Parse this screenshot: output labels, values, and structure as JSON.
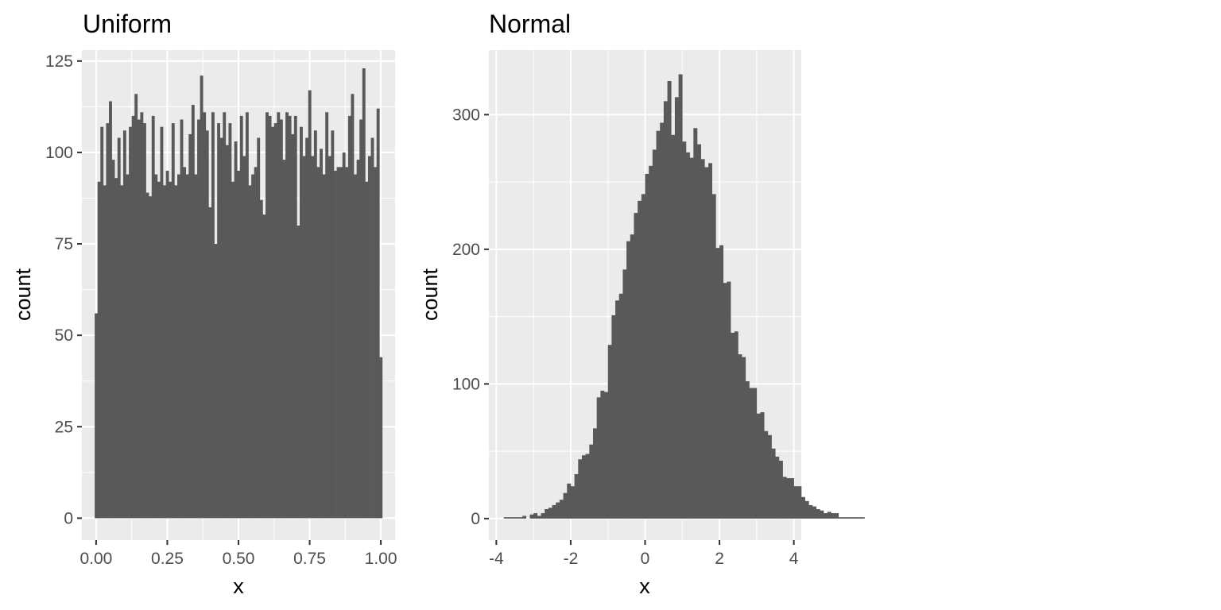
{
  "chart_data": [
    {
      "type": "bar",
      "title": "Uniform",
      "xlabel": "x",
      "ylabel": "count",
      "xlim": [
        -0.05,
        1.05
      ],
      "ylim": [
        -6,
        128
      ],
      "x_ticks": [
        0,
        0.25,
        0.5,
        0.75,
        1
      ],
      "x_tick_labels": [
        "0.00",
        "0.25",
        "0.50",
        "0.75",
        "1.00"
      ],
      "y_ticks": [
        0,
        25,
        50,
        75,
        100,
        125
      ],
      "y_tick_labels": [
        "0",
        "25",
        "50",
        "75",
        "100",
        "125"
      ],
      "grid": true,
      "legend": "none",
      "bin_start": -0.005,
      "bin_width": 0.01,
      "values": [
        56,
        92,
        107,
        91,
        108,
        114,
        98,
        93,
        104,
        91,
        106,
        94,
        107,
        110,
        116,
        109,
        111,
        108,
        89,
        88,
        110,
        94,
        92,
        107,
        91,
        95,
        92,
        108,
        91,
        94,
        109,
        96,
        94,
        105,
        113,
        94,
        109,
        121,
        111,
        106,
        85,
        111,
        75,
        108,
        104,
        111,
        102,
        108,
        92,
        103,
        95,
        110,
        99,
        111,
        91,
        94,
        96,
        104,
        87,
        83,
        111,
        110,
        107,
        108,
        111,
        109,
        98,
        111,
        110,
        105,
        110,
        80,
        107,
        99,
        104,
        117,
        99,
        106,
        96,
        101,
        94,
        111,
        99,
        106,
        95,
        96,
        96,
        100,
        96,
        110,
        116,
        94,
        98,
        109,
        123,
        92,
        99,
        104,
        96,
        112,
        44
      ],
      "bar_color": "#595959",
      "panel_color": "#ebebeb",
      "grid_color": "#ffffff"
    },
    {
      "type": "bar",
      "title": "Normal",
      "xlabel": "x",
      "ylabel": "count",
      "xlim": [
        -4.2,
        4.2
      ],
      "ylim": [
        -16,
        348
      ],
      "x_ticks": [
        -4,
        -2,
        0,
        2,
        4
      ],
      "x_tick_labels": [
        "-4",
        "-2",
        "0",
        "2",
        "4"
      ],
      "y_ticks": [
        0,
        100,
        200,
        300
      ],
      "y_tick_labels": [
        "0",
        "100",
        "200",
        "300"
      ],
      "grid": true,
      "legend": "none",
      "bin_start": -4.0,
      "bin_width": 0.1,
      "values": [
        0,
        0,
        1,
        1,
        1,
        1,
        1,
        2,
        0,
        3,
        4,
        2,
        4,
        7,
        8,
        10,
        12,
        14,
        19,
        26,
        24,
        33,
        44,
        47,
        48,
        55,
        67,
        90,
        95,
        94,
        129,
        151,
        162,
        167,
        185,
        206,
        211,
        227,
        236,
        241,
        256,
        262,
        274,
        288,
        294,
        310,
        325,
        285,
        313,
        330,
        280,
        272,
        268,
        290,
        278,
        267,
        261,
        264,
        241,
        201,
        203,
        175,
        176,
        138,
        139,
        122,
        120,
        102,
        97,
        97,
        78,
        79,
        65,
        62,
        52,
        46,
        43,
        31,
        30,
        30,
        24,
        24,
        16,
        13,
        10,
        9,
        7,
        6,
        4,
        5,
        4,
        4,
        1,
        1,
        1,
        1,
        1,
        1,
        1,
        0,
        0
      ]
    }
  ]
}
